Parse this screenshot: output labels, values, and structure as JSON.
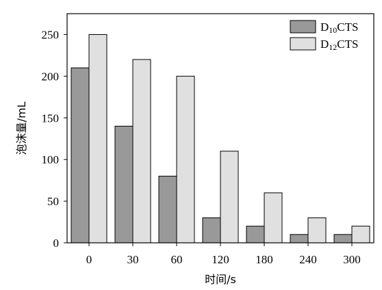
{
  "chart_data": {
    "type": "bar",
    "categories": [
      "0",
      "30",
      "60",
      "120",
      "180",
      "240",
      "300"
    ],
    "series": [
      {
        "name": "D10CTS",
        "label_main": "D",
        "label_sub": "10",
        "label_tail": "CTS",
        "color": "#999999",
        "values": [
          210,
          140,
          80,
          30,
          20,
          10,
          10
        ]
      },
      {
        "name": "D12CTS",
        "label_main": "D",
        "label_sub": "12",
        "label_tail": "CTS",
        "color": "#e0e0e0",
        "values": [
          250,
          220,
          200,
          110,
          60,
          30,
          20
        ]
      }
    ],
    "xlabel": "时间/s",
    "ylabel": "泡沫量/mL",
    "ylim": [
      0,
      275
    ],
    "yticks": [
      0,
      50,
      100,
      150,
      200,
      250
    ],
    "legend_position": "top-right",
    "grid": false
  }
}
